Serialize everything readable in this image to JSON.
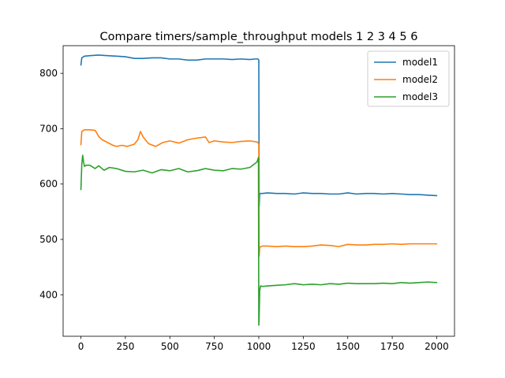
{
  "chart_data": {
    "type": "line",
    "title": "Compare timers/sample_throughput models 1 2 3 4 5 6",
    "xlabel": "",
    "ylabel": "",
    "xlim": [
      -100,
      2100
    ],
    "ylim": [
      325,
      850
    ],
    "xticks": [
      0,
      250,
      500,
      750,
      1000,
      1250,
      1500,
      1750,
      2000
    ],
    "yticks": [
      400,
      500,
      600,
      700,
      800
    ],
    "grid": false,
    "legend_position": "upper right",
    "series": [
      {
        "name": "model1",
        "color": "#1f77b4",
        "x": [
          0,
          5,
          20,
          50,
          100,
          150,
          200,
          250,
          300,
          350,
          400,
          450,
          500,
          550,
          600,
          650,
          700,
          750,
          800,
          850,
          900,
          950,
          980,
          995,
          1000,
          1002,
          1005,
          1020,
          1050,
          1100,
          1150,
          1200,
          1250,
          1300,
          1350,
          1400,
          1450,
          1500,
          1550,
          1600,
          1650,
          1700,
          1750,
          1800,
          1850,
          1900,
          1950,
          2000
        ],
        "y": [
          815,
          828,
          831,
          832,
          833,
          832,
          831,
          830,
          827,
          827,
          828,
          828,
          826,
          826,
          824,
          824,
          826,
          826,
          826,
          825,
          826,
          825,
          826,
          826,
          824,
          560,
          583,
          583,
          584,
          583,
          583,
          582,
          584,
          583,
          583,
          582,
          582,
          584,
          582,
          583,
          583,
          582,
          583,
          582,
          581,
          581,
          580,
          579
        ]
      },
      {
        "name": "model2",
        "color": "#ff7f0e",
        "x": [
          0,
          5,
          20,
          50,
          80,
          100,
          120,
          150,
          180,
          200,
          230,
          260,
          300,
          320,
          335,
          350,
          380,
          420,
          460,
          500,
          550,
          600,
          650,
          700,
          720,
          750,
          800,
          850,
          900,
          950,
          990,
          1000,
          1002,
          1005,
          1020,
          1050,
          1100,
          1150,
          1200,
          1250,
          1300,
          1350,
          1400,
          1450,
          1500,
          1550,
          1600,
          1650,
          1700,
          1750,
          1800,
          1850,
          1900,
          1950,
          2000
        ],
        "y": [
          671,
          695,
          698,
          698,
          697,
          686,
          680,
          675,
          670,
          668,
          670,
          668,
          672,
          680,
          695,
          685,
          673,
          668,
          675,
          678,
          674,
          680,
          683,
          685,
          675,
          678,
          676,
          675,
          677,
          678,
          676,
          673,
          470,
          486,
          488,
          488,
          487,
          488,
          487,
          487,
          488,
          490,
          489,
          487,
          491,
          490,
          490,
          491,
          491,
          492,
          491,
          492,
          492,
          492,
          492
        ]
      },
      {
        "name": "model3",
        "color": "#2ca02c",
        "x": [
          0,
          5,
          10,
          15,
          20,
          30,
          50,
          80,
          100,
          130,
          160,
          200,
          250,
          300,
          350,
          400,
          450,
          500,
          550,
          600,
          650,
          700,
          750,
          800,
          850,
          900,
          950,
          990,
          998,
          1000,
          1002,
          1005,
          1010,
          1020,
          1050,
          1100,
          1150,
          1200,
          1250,
          1300,
          1350,
          1400,
          1450,
          1500,
          1550,
          1600,
          1650,
          1700,
          1750,
          1800,
          1850,
          1900,
          1950,
          2000
        ],
        "y": [
          590,
          636,
          652,
          640,
          632,
          634,
          634,
          628,
          633,
          625,
          630,
          628,
          623,
          622,
          625,
          620,
          626,
          624,
          628,
          622,
          624,
          628,
          625,
          624,
          628,
          627,
          630,
          640,
          648,
          345,
          360,
          408,
          416,
          415,
          416,
          417,
          418,
          420,
          418,
          419,
          418,
          420,
          419,
          421,
          420,
          420,
          420,
          421,
          420,
          422,
          421,
          422,
          423,
          422
        ]
      }
    ]
  }
}
